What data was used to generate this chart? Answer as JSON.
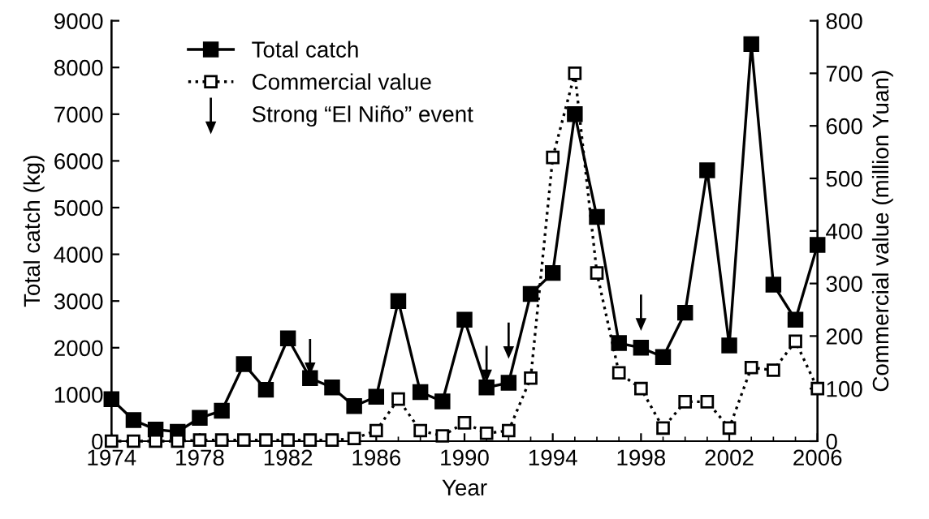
{
  "chart_data": {
    "type": "line",
    "xlabel": "Year",
    "ylabel": "Total catch (kg)",
    "y2label": "Commercial value (million Yuan)",
    "x": [
      1974,
      1975,
      1976,
      1977,
      1978,
      1979,
      1980,
      1981,
      1982,
      1983,
      1984,
      1985,
      1986,
      1987,
      1988,
      1989,
      1990,
      1991,
      1992,
      1993,
      1994,
      1995,
      1996,
      1997,
      1998,
      1999,
      2000,
      2001,
      2002,
      2003,
      2004,
      2005,
      2006
    ],
    "series": [
      {
        "name": "Total catch",
        "color": "#000000",
        "marker": "square",
        "line_style": "solid",
        "values": [
          900,
          450,
          250,
          200,
          500,
          650,
          1650,
          1100,
          2200,
          1350,
          1150,
          750,
          950,
          3000,
          1050,
          850,
          2600,
          1150,
          1250,
          3150,
          3600,
          7000,
          4800,
          2100,
          2000,
          1800,
          2750,
          5800,
          2050,
          8500,
          3350,
          2600,
          4200
        ]
      },
      {
        "name": "Commercial value",
        "color": "#000000",
        "marker": "square",
        "line_style": "dotted",
        "axis": "y2",
        "values": [
          0,
          0,
          0,
          0,
          2,
          2,
          2,
          2,
          2,
          2,
          2,
          5,
          20,
          80,
          20,
          10,
          35,
          15,
          20,
          120,
          540,
          700,
          320,
          130,
          100,
          25,
          75,
          75,
          25,
          140,
          135,
          190,
          100
        ]
      },
      {
        "name": "Strong “El Niño” event",
        "type": "scatter",
        "color": "#000000",
        "marker": "triangle",
        "x": [
          1983,
          1991,
          1992,
          1998
        ],
        "values": [
          1800,
          1650,
          2150,
          2750
        ]
      }
    ],
    "xlim": [
      1974,
      2006
    ],
    "xticks": [
      1974,
      1978,
      1982,
      1986,
      1990,
      1994,
      1998,
      2002,
      2006
    ],
    "ylim": [
      0,
      9000
    ],
    "yticks": [
      0,
      1000,
      2000,
      3000,
      4000,
      5000,
      6000,
      7000,
      8000,
      9000
    ],
    "y2lim": [
      0,
      800
    ],
    "y2ticks": [
      0,
      100,
      200,
      300,
      400,
      500,
      600,
      700,
      800
    ],
    "legend": "top left",
    "grid": false
  }
}
